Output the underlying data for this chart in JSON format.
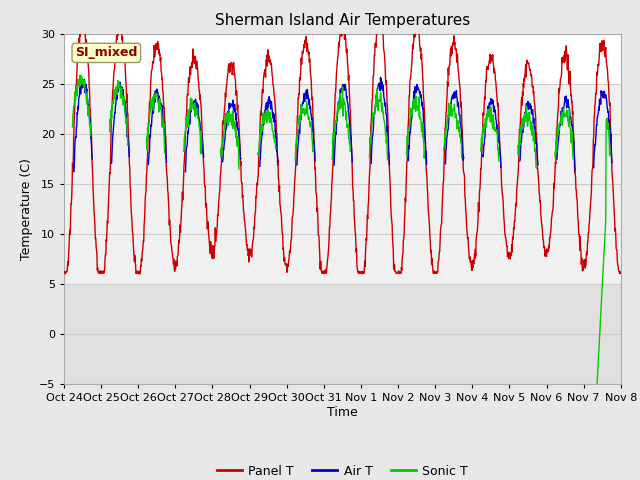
{
  "title": "Sherman Island Air Temperatures",
  "xlabel": "Time",
  "ylabel": "Temperature (C)",
  "ylim": [
    -5,
    30
  ],
  "yticks": [
    -5,
    0,
    5,
    10,
    15,
    20,
    25,
    30
  ],
  "fig_bg_color": "#e8e8e8",
  "plot_bg_color": "#ffffff",
  "label_box_text": "SI_mixed",
  "label_box_facecolor": "#ffffcc",
  "label_box_edgecolor": "#999966",
  "label_box_textcolor": "#8b0000",
  "line_colors": {
    "panel": "#cc0000",
    "air": "#0000cc",
    "sonic": "#00cc00"
  },
  "legend_labels": [
    "Panel T",
    "Air T",
    "Sonic T"
  ],
  "xtick_labels": [
    "Oct 24",
    "Oct 25",
    "Oct 26",
    "Oct 27",
    "Oct 28",
    "Oct 29",
    "Oct 30",
    "Oct 31",
    "Nov 1",
    "Nov 2",
    "Nov 3",
    "Nov 4",
    "Nov 5",
    "Nov 6",
    "Nov 7",
    "Nov 8"
  ],
  "shaded_band_color": "#e0e0e0",
  "grid_color": "#cccccc",
  "n_days": 15.0,
  "spike_day": 14.1,
  "spike_val": -5.5
}
